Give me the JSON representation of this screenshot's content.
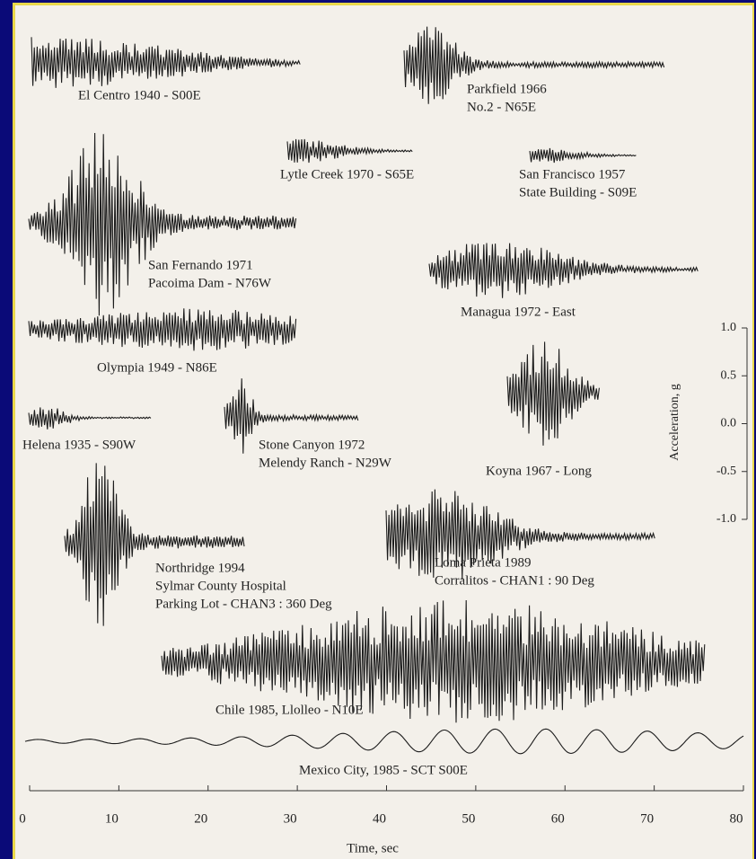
{
  "chart_data": {
    "type": "accelerogram",
    "xlabel": "Time, sec",
    "ylabel": "Acceleration, g",
    "xlim": [
      0,
      80
    ],
    "xticks": [
      0,
      10,
      20,
      30,
      40,
      50,
      60,
      70,
      80
    ],
    "ylim": [
      -1.0,
      1.0
    ],
    "yticks": [
      {
        "value": 1.0,
        "label": "1.0"
      },
      {
        "value": 0.5,
        "label": "0.5"
      },
      {
        "value": 0.0,
        "label": "0.0"
      },
      {
        "value": -0.5,
        "label": "-0.5"
      },
      {
        "value": -1.0,
        "label": "-1.0"
      }
    ],
    "records": [
      {
        "lines": [
          "El Centro 1940 - S00E"
        ]
      },
      {
        "lines": [
          "Parkfield 1966",
          "No.2 - N65E"
        ]
      },
      {
        "lines": [
          "Lytle Creek 1970 - S65E"
        ]
      },
      {
        "lines": [
          "San Francisco 1957",
          "State Building - S09E"
        ]
      },
      {
        "lines": [
          "San Fernando 1971",
          "Pacoima Dam - N76W"
        ]
      },
      {
        "lines": [
          "Managua 1972 - East"
        ]
      },
      {
        "lines": [
          "Olympia 1949 - N86E"
        ]
      },
      {
        "lines": [
          "Helena 1935 - S90W"
        ]
      },
      {
        "lines": [
          "Stone Canyon 1972",
          "Melendy Ranch - N29W"
        ]
      },
      {
        "lines": [
          "Koyna 1967 - Long"
        ]
      },
      {
        "lines": [
          "Northridge 1994",
          "Sylmar County Hospital",
          "Parking Lot - CHAN3 : 360 Deg"
        ]
      },
      {
        "lines": [
          "Loma Prieta 1989",
          "Corralitos - CHAN1 : 90 Deg"
        ]
      },
      {
        "lines": [
          "Chile 1985, Llolleo - N10E"
        ]
      },
      {
        "lines": [
          "Mexico City, 1985 - SCT S00E"
        ]
      }
    ]
  }
}
